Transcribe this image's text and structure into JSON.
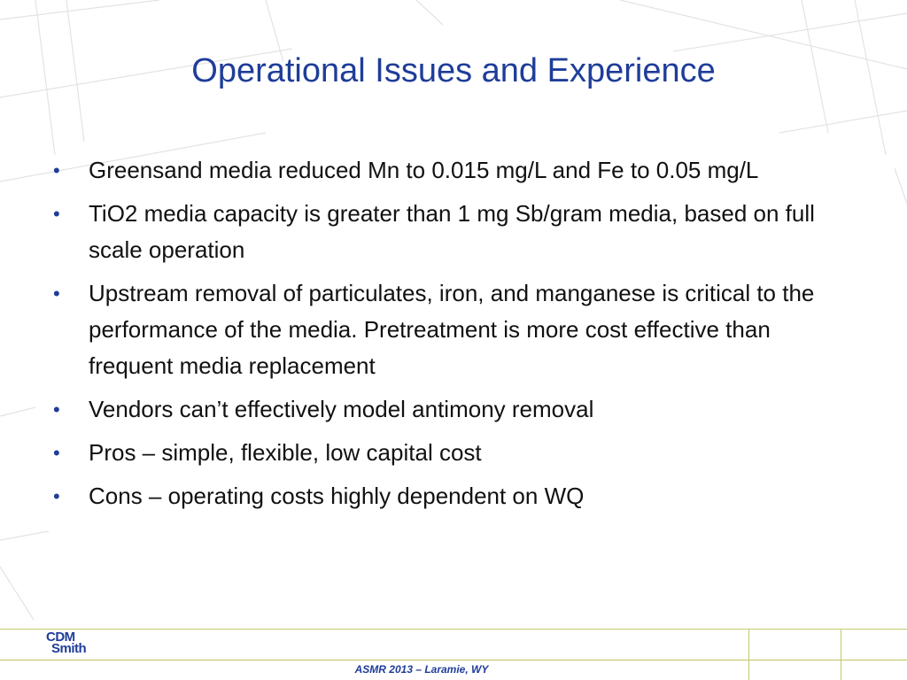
{
  "slide": {
    "title": "Operational Issues and Experience",
    "bullets": [
      "Greensand media reduced Mn to 0.015 mg/L and Fe to 0.05 mg/L",
      "TiO2 media capacity is greater than 1 mg Sb/gram media, based on full scale operation",
      "Upstream removal of particulates, iron, and manganese is critical to the performance of the media. Pretreatment is more cost effective than frequent media replacement",
      "Vendors can’t effectively model antimony removal",
      "Pros – simple, flexible, low capital cost",
      "Cons – operating costs highly dependent on WQ"
    ],
    "bullet_symbol": "•"
  },
  "footer": {
    "logo_line1": "CDM",
    "logo_line2": "Smith",
    "text": "ASMR 2013 – Laramie, WY"
  },
  "colors": {
    "title": "#1f3d99",
    "body_text": "#111111",
    "background_lines": "#e3e3e3",
    "footer_lines": "#c9cc7a"
  }
}
